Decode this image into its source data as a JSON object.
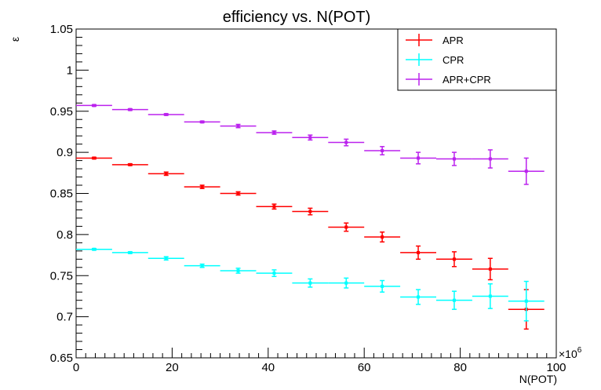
{
  "chart_data": {
    "type": "scatter",
    "title": "efficiency vs. N(POT)",
    "xlabel": "N(POT)",
    "ylabel": "ε",
    "x_exponent_label": "×10",
    "x_exponent": "6",
    "xlim": [
      0,
      100
    ],
    "ylim": [
      0.65,
      1.05
    ],
    "x_ticks": [
      0,
      20,
      40,
      60,
      80,
      100
    ],
    "x_tick_labels": [
      "0",
      "20",
      "40",
      "60",
      "80",
      "100"
    ],
    "y_ticks": [
      0.65,
      0.7,
      0.75,
      0.8,
      0.85,
      0.9,
      0.95,
      1,
      1.05
    ],
    "y_tick_labels": [
      "0.65",
      "0.7",
      "0.75",
      "0.8",
      "0.85",
      "0.9",
      "0.95",
      "1",
      "1.05"
    ],
    "grid": false,
    "legend_position": "top-right",
    "x_bin_half_width": 3.75,
    "series": [
      {
        "name": "APR",
        "color": "#ff0000",
        "x": [
          3.75,
          11.25,
          18.75,
          26.25,
          33.75,
          41.25,
          48.75,
          56.25,
          63.75,
          71.25,
          78.75,
          86.25,
          93.75
        ],
        "y": [
          0.893,
          0.885,
          0.874,
          0.858,
          0.85,
          0.834,
          0.828,
          0.809,
          0.797,
          0.778,
          0.77,
          0.758,
          0.709
        ],
        "yerr": [
          0.001,
          0.001,
          0.002,
          0.002,
          0.002,
          0.003,
          0.004,
          0.005,
          0.006,
          0.008,
          0.009,
          0.013,
          0.024
        ]
      },
      {
        "name": "CPR",
        "color": "#00ffff",
        "x": [
          3.75,
          11.25,
          18.75,
          26.25,
          33.75,
          41.25,
          48.75,
          56.25,
          63.75,
          71.25,
          78.75,
          86.25,
          93.75
        ],
        "y": [
          0.782,
          0.778,
          0.771,
          0.762,
          0.756,
          0.753,
          0.741,
          0.741,
          0.737,
          0.724,
          0.72,
          0.725,
          0.719
        ],
        "yerr": [
          0.001,
          0.001,
          0.002,
          0.002,
          0.003,
          0.004,
          0.005,
          0.006,
          0.007,
          0.009,
          0.011,
          0.015,
          0.024
        ]
      },
      {
        "name": "APR+CPR",
        "color": "#bb22ee",
        "x": [
          3.75,
          11.25,
          18.75,
          26.25,
          33.75,
          41.25,
          48.75,
          56.25,
          63.75,
          71.25,
          78.75,
          86.25,
          93.75
        ],
        "y": [
          0.957,
          0.952,
          0.946,
          0.937,
          0.932,
          0.924,
          0.918,
          0.912,
          0.902,
          0.893,
          0.892,
          0.892,
          0.877
        ],
        "yerr": [
          0.001,
          0.001,
          0.001,
          0.001,
          0.002,
          0.002,
          0.003,
          0.004,
          0.005,
          0.007,
          0.008,
          0.011,
          0.016
        ]
      }
    ]
  }
}
